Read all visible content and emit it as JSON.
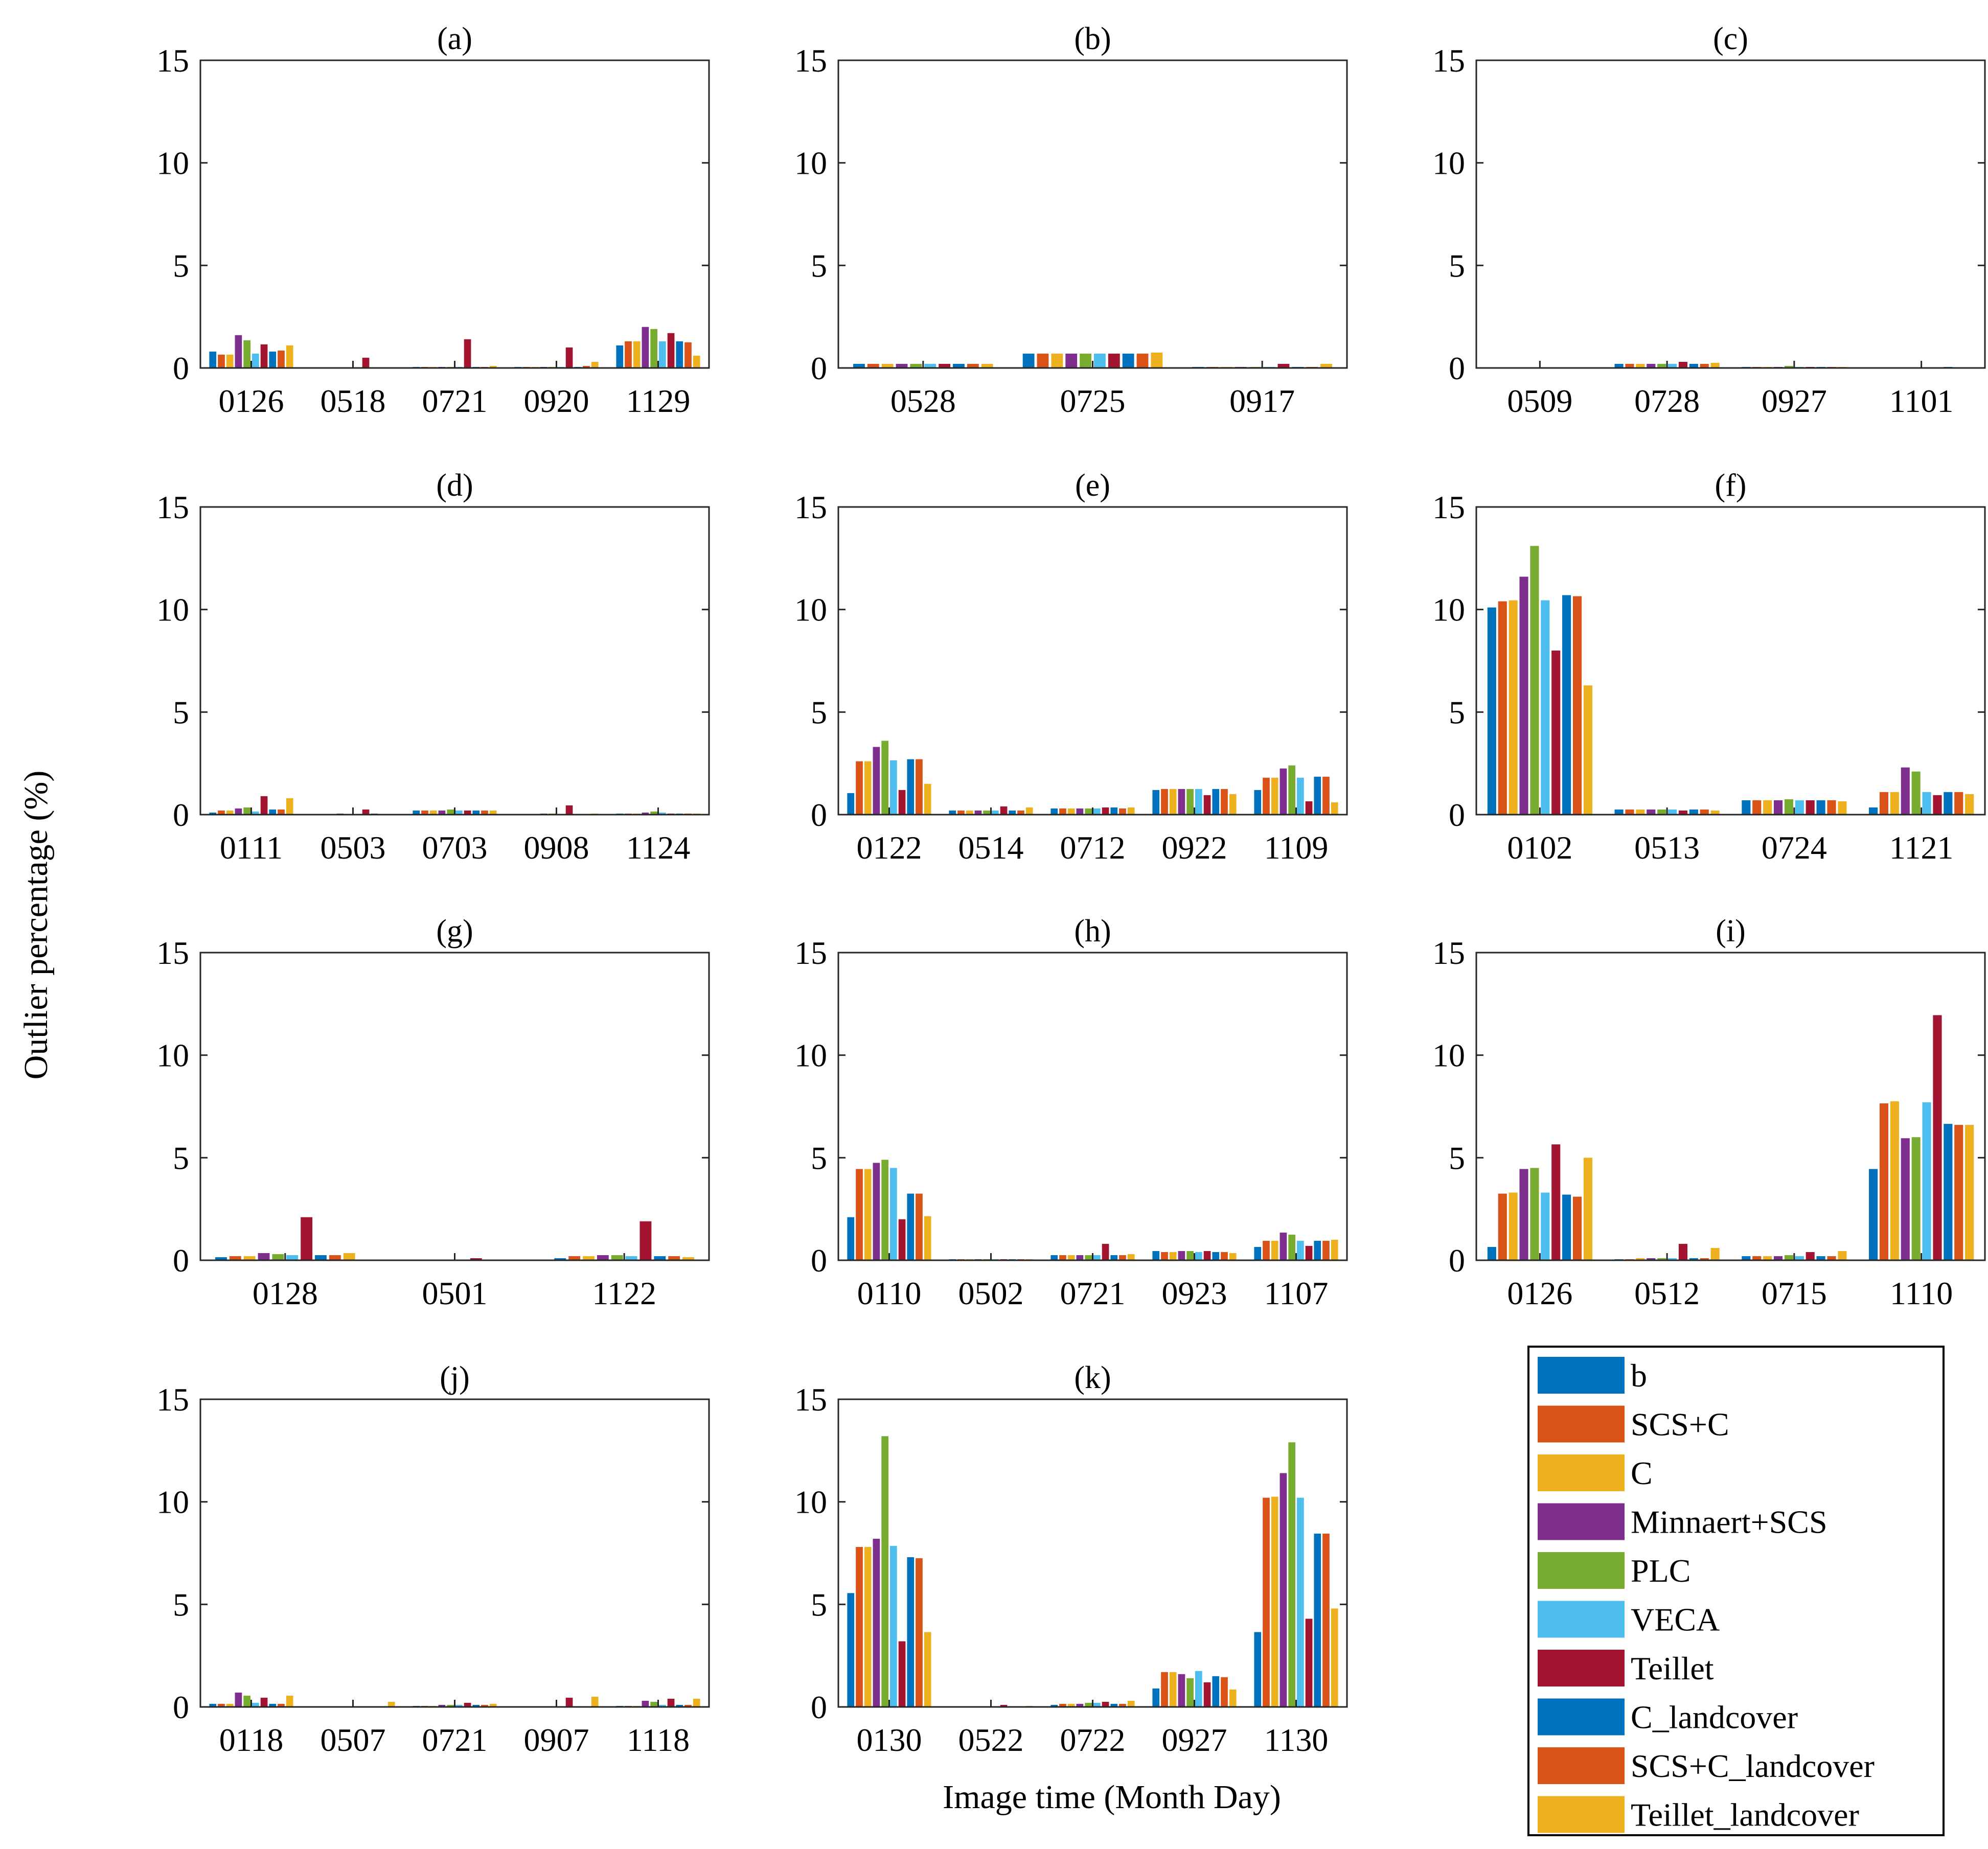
{
  "figure": {
    "ylabel": "Outlier percentage (%)",
    "xlabel": "Image time (Month Day)"
  },
  "series_names": [
    "b",
    "SCS+C",
    "C",
    "Minnaert+SCS",
    "PLC",
    "VECA",
    "Teillet",
    "C_landcover",
    "SCS+C_landcover",
    "Teillet_landcover"
  ],
  "series_colors": [
    "#0072BD",
    "#D95319",
    "#EDB120",
    "#7E2F8E",
    "#77AC30",
    "#4DBEEE",
    "#A2142F",
    "#0072BD",
    "#D95319",
    "#EDB120"
  ],
  "chart_data": [
    {
      "type": "bar",
      "title": "(a)",
      "ylim": [
        0,
        15
      ],
      "yticks": [
        0,
        5,
        10,
        15
      ],
      "categories": [
        "0126",
        "0518",
        "0721",
        "0920",
        "1129"
      ],
      "values": [
        [
          0.8,
          0.65,
          0.65,
          1.6,
          1.35,
          0.7,
          1.15,
          0.8,
          0.85,
          1.1
        ],
        [
          0.0,
          0.0,
          0.0,
          0.0,
          0.0,
          0.0,
          0.5,
          0.0,
          0.0,
          0.0
        ],
        [
          0.05,
          0.05,
          0.05,
          0.05,
          0.05,
          0.05,
          1.4,
          0.05,
          0.05,
          0.1
        ],
        [
          0.05,
          0.05,
          0.05,
          0.05,
          0.05,
          0.05,
          1.0,
          0.05,
          0.1,
          0.3
        ],
        [
          1.1,
          1.3,
          1.3,
          2.0,
          1.9,
          1.3,
          1.7,
          1.3,
          1.25,
          0.6
        ]
      ]
    },
    {
      "type": "bar",
      "title": "(b)",
      "ylim": [
        0,
        15
      ],
      "yticks": [
        0,
        5,
        10,
        15
      ],
      "categories": [
        "0528",
        "0725",
        "0917"
      ],
      "values": [
        [
          0.2,
          0.2,
          0.2,
          0.2,
          0.2,
          0.2,
          0.2,
          0.2,
          0.2,
          0.2
        ],
        [
          0.7,
          0.7,
          0.7,
          0.7,
          0.7,
          0.7,
          0.7,
          0.7,
          0.7,
          0.75
        ],
        [
          0.05,
          0.05,
          0.05,
          0.05,
          0.05,
          0.05,
          0.2,
          0.05,
          0.05,
          0.2
        ]
      ]
    },
    {
      "type": "bar",
      "title": "(c)",
      "ylim": [
        0,
        15
      ],
      "yticks": [
        0,
        5,
        10,
        15
      ],
      "categories": [
        "0509",
        "0728",
        "0927",
        "1101"
      ],
      "values": [
        [
          0.0,
          0.0,
          0.0,
          0.0,
          0.0,
          0.0,
          0.0,
          0.0,
          0.0,
          0.0
        ],
        [
          0.2,
          0.2,
          0.2,
          0.2,
          0.2,
          0.2,
          0.3,
          0.2,
          0.2,
          0.25
        ],
        [
          0.05,
          0.05,
          0.05,
          0.05,
          0.1,
          0.05,
          0.05,
          0.05,
          0.05,
          0.05
        ],
        [
          0.0,
          0.0,
          0.0,
          0.0,
          0.0,
          0.0,
          0.0,
          0.05,
          0.0,
          0.0
        ]
      ]
    },
    {
      "type": "bar",
      "title": "(d)",
      "ylim": [
        0,
        15
      ],
      "yticks": [
        0,
        5,
        10,
        15
      ],
      "categories": [
        "0111",
        "0503",
        "0703",
        "0908",
        "1124"
      ],
      "values": [
        [
          0.1,
          0.2,
          0.2,
          0.3,
          0.35,
          0.15,
          0.9,
          0.25,
          0.25,
          0.8
        ],
        [
          0.0,
          0.0,
          0.0,
          0.05,
          0.0,
          0.0,
          0.25,
          0.05,
          0.0,
          0.0
        ],
        [
          0.2,
          0.2,
          0.2,
          0.2,
          0.25,
          0.2,
          0.2,
          0.2,
          0.2,
          0.2
        ],
        [
          0.0,
          0.0,
          0.0,
          0.05,
          0.05,
          0.0,
          0.45,
          0.0,
          0.0,
          0.05
        ],
        [
          0.05,
          0.05,
          0.05,
          0.1,
          0.15,
          0.1,
          0.05,
          0.05,
          0.05,
          0.05
        ]
      ]
    },
    {
      "type": "bar",
      "title": "(e)",
      "ylim": [
        0,
        15
      ],
      "yticks": [
        0,
        5,
        10,
        15
      ],
      "categories": [
        "0122",
        "0514",
        "0712",
        "0922",
        "1109"
      ],
      "values": [
        [
          1.05,
          2.6,
          2.6,
          3.3,
          3.6,
          2.65,
          1.2,
          2.7,
          2.7,
          1.5
        ],
        [
          0.2,
          0.2,
          0.2,
          0.2,
          0.2,
          0.2,
          0.4,
          0.2,
          0.2,
          0.35
        ],
        [
          0.3,
          0.3,
          0.3,
          0.3,
          0.3,
          0.3,
          0.35,
          0.35,
          0.3,
          0.35
        ],
        [
          1.2,
          1.25,
          1.25,
          1.25,
          1.25,
          1.25,
          0.95,
          1.25,
          1.25,
          1.0
        ],
        [
          1.2,
          1.8,
          1.8,
          2.25,
          2.4,
          1.8,
          0.65,
          1.85,
          1.85,
          0.6
        ]
      ]
    },
    {
      "type": "bar",
      "title": "(f)",
      "ylim": [
        0,
        15
      ],
      "yticks": [
        0,
        5,
        10,
        15
      ],
      "categories": [
        "0102",
        "0513",
        "0724",
        "1121"
      ],
      "values": [
        [
          10.1,
          10.4,
          10.45,
          11.6,
          13.1,
          10.45,
          8.0,
          10.7,
          10.65,
          6.3
        ],
        [
          0.25,
          0.25,
          0.25,
          0.25,
          0.25,
          0.25,
          0.2,
          0.25,
          0.25,
          0.2
        ],
        [
          0.7,
          0.7,
          0.7,
          0.7,
          0.75,
          0.7,
          0.7,
          0.7,
          0.7,
          0.65
        ],
        [
          0.35,
          1.1,
          1.1,
          2.3,
          2.1,
          1.1,
          0.95,
          1.1,
          1.1,
          1.0
        ]
      ]
    },
    {
      "type": "bar",
      "title": "(g)",
      "ylim": [
        0,
        15
      ],
      "yticks": [
        0,
        5,
        10,
        15
      ],
      "categories": [
        "0128",
        "0501",
        "1122"
      ],
      "values": [
        [
          0.15,
          0.2,
          0.2,
          0.35,
          0.3,
          0.25,
          2.1,
          0.25,
          0.25,
          0.35
        ],
        [
          0.0,
          0.0,
          0.0,
          0.0,
          0.0,
          0.0,
          0.1,
          0.0,
          0.0,
          0.0
        ],
        [
          0.1,
          0.2,
          0.2,
          0.25,
          0.25,
          0.2,
          1.9,
          0.2,
          0.2,
          0.15
        ]
      ]
    },
    {
      "type": "bar",
      "title": "(h)",
      "ylim": [
        0,
        15
      ],
      "yticks": [
        0,
        5,
        10,
        15
      ],
      "categories": [
        "0110",
        "0502",
        "0721",
        "0923",
        "1107"
      ],
      "values": [
        [
          2.1,
          4.45,
          4.45,
          4.75,
          4.9,
          4.5,
          2.0,
          3.25,
          3.25,
          2.15
        ],
        [
          0.05,
          0.05,
          0.05,
          0.05,
          0.05,
          0.05,
          0.05,
          0.05,
          0.05,
          0.05
        ],
        [
          0.25,
          0.25,
          0.25,
          0.25,
          0.25,
          0.25,
          0.8,
          0.25,
          0.25,
          0.3
        ],
        [
          0.45,
          0.4,
          0.4,
          0.45,
          0.45,
          0.4,
          0.45,
          0.4,
          0.4,
          0.35
        ],
        [
          0.65,
          0.95,
          0.95,
          1.35,
          1.25,
          0.95,
          0.7,
          0.95,
          0.95,
          1.0
        ]
      ]
    },
    {
      "type": "bar",
      "title": "(i)",
      "ylim": [
        0,
        15
      ],
      "yticks": [
        0,
        5,
        10,
        15
      ],
      "categories": [
        "0126",
        "0512",
        "0715",
        "1110"
      ],
      "values": [
        [
          0.65,
          3.25,
          3.3,
          4.45,
          4.5,
          3.3,
          5.65,
          3.2,
          3.1,
          5.0
        ],
        [
          0.05,
          0.05,
          0.1,
          0.1,
          0.1,
          0.1,
          0.8,
          0.1,
          0.1,
          0.6
        ],
        [
          0.2,
          0.2,
          0.2,
          0.2,
          0.25,
          0.2,
          0.4,
          0.2,
          0.2,
          0.45
        ],
        [
          4.45,
          7.65,
          7.75,
          5.95,
          6.0,
          7.7,
          11.95,
          6.65,
          6.6,
          6.6
        ]
      ]
    },
    {
      "type": "bar",
      "title": "(j)",
      "ylim": [
        0,
        15
      ],
      "yticks": [
        0,
        5,
        10,
        15
      ],
      "categories": [
        "0118",
        "0507",
        "0721",
        "0907",
        "1118"
      ],
      "values": [
        [
          0.15,
          0.15,
          0.15,
          0.7,
          0.55,
          0.2,
          0.45,
          0.15,
          0.15,
          0.55
        ],
        [
          0.0,
          0.0,
          0.0,
          0.0,
          0.0,
          0.0,
          0.0,
          0.0,
          0.0,
          0.25
        ],
        [
          0.05,
          0.05,
          0.05,
          0.1,
          0.1,
          0.1,
          0.2,
          0.1,
          0.1,
          0.15
        ],
        [
          0.0,
          0.0,
          0.0,
          0.0,
          0.0,
          0.0,
          0.45,
          0.0,
          0.0,
          0.5
        ],
        [
          0.05,
          0.05,
          0.05,
          0.3,
          0.25,
          0.1,
          0.4,
          0.1,
          0.1,
          0.4
        ]
      ]
    },
    {
      "type": "bar",
      "title": "(k)",
      "ylim": [
        0,
        15
      ],
      "yticks": [
        0,
        5,
        10,
        15
      ],
      "categories": [
        "0130",
        "0522",
        "0722",
        "0927",
        "1130"
      ],
      "values": [
        [
          5.55,
          7.8,
          7.8,
          8.2,
          13.2,
          7.85,
          3.2,
          7.3,
          7.25,
          3.65
        ],
        [
          0.0,
          0.0,
          0.0,
          0.0,
          0.0,
          0.0,
          0.1,
          0.0,
          0.0,
          0.05
        ],
        [
          0.1,
          0.15,
          0.15,
          0.15,
          0.2,
          0.2,
          0.25,
          0.15,
          0.15,
          0.3
        ],
        [
          0.9,
          1.7,
          1.7,
          1.6,
          1.4,
          1.75,
          1.2,
          1.5,
          1.45,
          0.85
        ],
        [
          3.65,
          10.2,
          10.25,
          11.4,
          12.9,
          10.2,
          4.3,
          8.45,
          8.45,
          4.8
        ]
      ]
    }
  ]
}
